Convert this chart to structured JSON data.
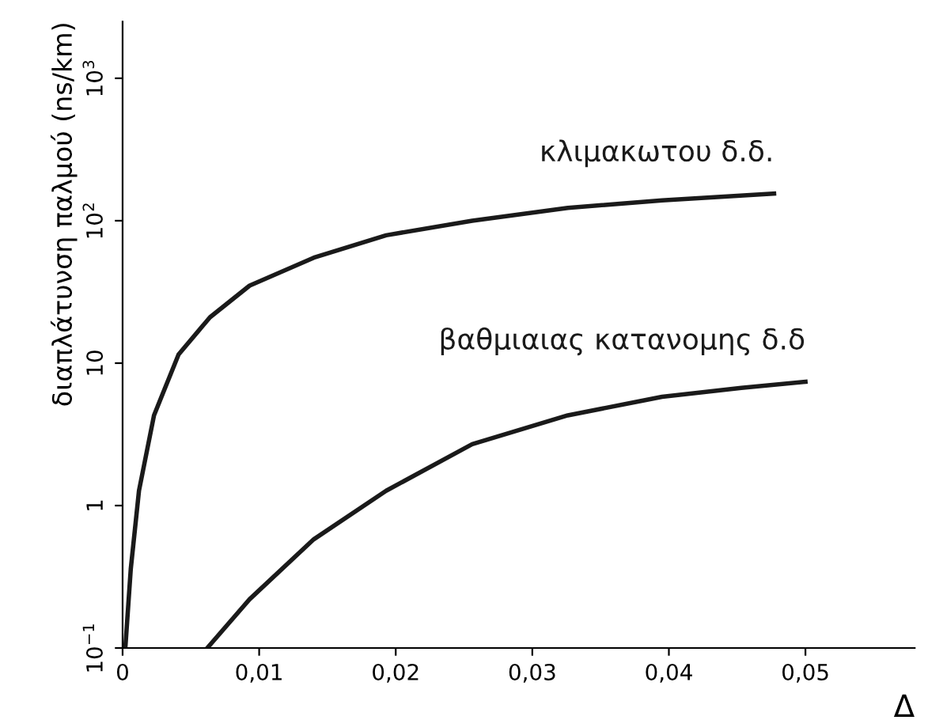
{
  "chart_data": {
    "type": "line",
    "xlabel": "Δ",
    "ylabel": "διαπλάτυνση παλμού (ns/km)",
    "log": "y",
    "xlim": [
      0,
      0.058
    ],
    "ylim": [
      0.1,
      2500
    ],
    "xticks": [
      {
        "value": 0,
        "label": "0"
      },
      {
        "value": 0.01,
        "label": "0,01"
      },
      {
        "value": 0.02,
        "label": "0,02"
      },
      {
        "value": 0.03,
        "label": "0,03"
      },
      {
        "value": 0.04,
        "label": "0,04"
      },
      {
        "value": 0.05,
        "label": "0,05"
      }
    ],
    "yticks": [
      {
        "value": 0.1,
        "label": "10$^{−1}$"
      },
      {
        "value": 1,
        "label": "1"
      },
      {
        "value": 10,
        "label": "10"
      },
      {
        "value": 100,
        "label": "10$^{2}$"
      },
      {
        "value": 1000,
        "label": "10$^{3}$"
      }
    ],
    "grid": false,
    "legend": false,
    "marker": "none",
    "line_style": "solid",
    "series": [
      {
        "name": "κλιμακωτου δ.δ.",
        "color": "#1a1a1a",
        "x": [
          0.0002,
          0.0006,
          0.0012,
          0.0023,
          0.0041,
          0.0064,
          0.0093,
          0.014,
          0.0193,
          0.0256,
          0.0326,
          0.0395,
          0.0477
        ],
        "values": [
          0.1,
          0.36,
          1.27,
          4.3,
          11.5,
          21,
          35,
          55,
          79,
          100,
          123,
          139,
          155
        ]
      },
      {
        "name": "βαθμιαιας κατανομης δ.δ",
        "color": "#1a1a1a",
        "x": [
          0.0062,
          0.0093,
          0.014,
          0.0193,
          0.0256,
          0.0326,
          0.0395,
          0.0453,
          0.05
        ],
        "values": [
          0.1,
          0.22,
          0.58,
          1.27,
          2.7,
          4.3,
          5.8,
          6.7,
          7.4
        ]
      }
    ]
  }
}
